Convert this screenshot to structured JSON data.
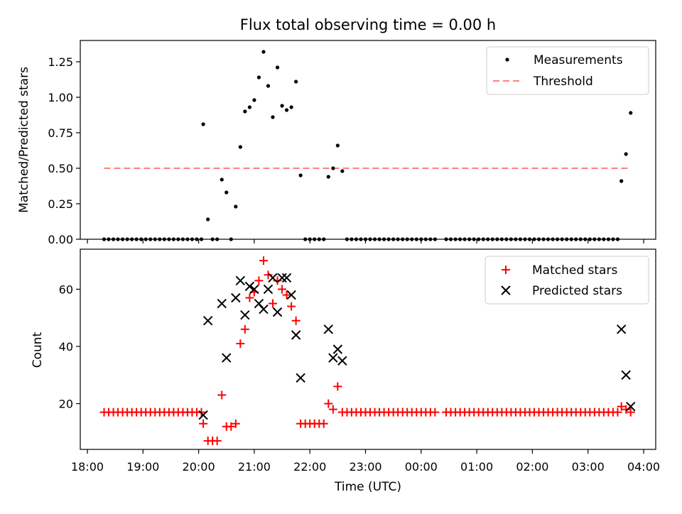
{
  "chart_data": [
    {
      "type": "scatter",
      "title": "Flux total observing time = 0.00 h",
      "xlabel": "",
      "ylabel": "Matched/Predicted stars",
      "ylim": [
        0,
        1.4
      ],
      "yticks": [
        "0.00",
        "0.25",
        "0.50",
        "0.75",
        "1.00",
        "1.25"
      ],
      "legend_position": "top-right",
      "series": [
        {
          "name": "Measurements",
          "color": "#000000",
          "marker": "dot",
          "points": [
            [
              -5.7,
              0
            ],
            [
              -5.617,
              0
            ],
            [
              -5.533,
              0
            ],
            [
              -5.45,
              0
            ],
            [
              -5.367,
              0
            ],
            [
              -5.283,
              0
            ],
            [
              -5.2,
              0
            ],
            [
              -5.117,
              0
            ],
            [
              -5.033,
              0
            ],
            [
              -4.95,
              0
            ],
            [
              -4.867,
              0
            ],
            [
              -4.783,
              0
            ],
            [
              -4.7,
              0
            ],
            [
              -4.617,
              0
            ],
            [
              -4.533,
              0
            ],
            [
              -4.45,
              0
            ],
            [
              -4.367,
              0
            ],
            [
              -4.283,
              0
            ],
            [
              -4.2,
              0
            ],
            [
              -4.117,
              0
            ],
            [
              -4.033,
              0
            ],
            [
              -3.95,
              0
            ],
            [
              -3.917,
              0.81
            ],
            [
              -3.833,
              0.14
            ],
            [
              -3.75,
              0
            ],
            [
              -3.667,
              0
            ],
            [
              -3.583,
              0.42
            ],
            [
              -3.5,
              0.33
            ],
            [
              -3.417,
              0
            ],
            [
              -3.333,
              0.23
            ],
            [
              -3.25,
              0.65
            ],
            [
              -3.167,
              0.9
            ],
            [
              -3.083,
              0.93
            ],
            [
              -3.0,
              0.98
            ],
            [
              -2.917,
              1.14
            ],
            [
              -2.833,
              1.32
            ],
            [
              -2.75,
              1.08
            ],
            [
              -2.667,
              0.86
            ],
            [
              -2.583,
              1.21
            ],
            [
              -2.5,
              0.94
            ],
            [
              -2.417,
              0.91
            ],
            [
              -2.333,
              0.93
            ],
            [
              -2.25,
              1.11
            ],
            [
              -2.167,
              0.45
            ],
            [
              -2.083,
              0
            ],
            [
              -2.0,
              0
            ],
            [
              -1.917,
              0
            ],
            [
              -1.833,
              0
            ],
            [
              -1.75,
              0
            ],
            [
              -1.667,
              0.44
            ],
            [
              -1.583,
              0.5
            ],
            [
              -1.5,
              0.66
            ],
            [
              -1.417,
              0.48
            ],
            [
              -1.333,
              0
            ],
            [
              -1.25,
              0
            ],
            [
              -1.167,
              0
            ],
            [
              -1.083,
              0
            ],
            [
              -1.0,
              0
            ],
            [
              -0.917,
              0
            ],
            [
              -0.833,
              0
            ],
            [
              -0.75,
              0
            ],
            [
              -0.667,
              0
            ],
            [
              -0.583,
              0
            ],
            [
              -0.5,
              0
            ],
            [
              -0.417,
              0
            ],
            [
              -0.333,
              0
            ],
            [
              -0.25,
              0
            ],
            [
              -0.167,
              0
            ],
            [
              -0.083,
              0
            ],
            [
              0.0,
              0
            ],
            [
              0.083,
              0
            ],
            [
              0.167,
              0
            ],
            [
              0.25,
              0
            ],
            [
              0.45,
              0
            ],
            [
              0.533,
              0
            ],
            [
              0.617,
              0
            ],
            [
              0.7,
              0
            ],
            [
              0.783,
              0
            ],
            [
              0.867,
              0
            ],
            [
              0.95,
              0
            ],
            [
              1.033,
              0
            ],
            [
              1.117,
              0
            ],
            [
              1.2,
              0
            ],
            [
              1.283,
              0
            ],
            [
              1.367,
              0
            ],
            [
              1.45,
              0
            ],
            [
              1.533,
              0
            ],
            [
              1.617,
              0
            ],
            [
              1.7,
              0
            ],
            [
              1.783,
              0
            ],
            [
              1.867,
              0
            ],
            [
              1.95,
              0
            ],
            [
              2.033,
              0
            ],
            [
              2.117,
              0
            ],
            [
              2.2,
              0
            ],
            [
              2.283,
              0
            ],
            [
              2.367,
              0
            ],
            [
              2.45,
              0
            ],
            [
              2.533,
              0
            ],
            [
              2.617,
              0
            ],
            [
              2.7,
              0
            ],
            [
              2.783,
              0
            ],
            [
              2.867,
              0
            ],
            [
              2.95,
              0
            ],
            [
              3.033,
              0
            ],
            [
              3.117,
              0
            ],
            [
              3.2,
              0
            ],
            [
              3.283,
              0
            ],
            [
              3.367,
              0
            ],
            [
              3.45,
              0
            ],
            [
              3.533,
              0
            ],
            [
              3.6,
              0.41
            ],
            [
              3.683,
              0.6
            ],
            [
              3.767,
              0.89
            ]
          ]
        },
        {
          "name": "Threshold",
          "color": "#ff7f7f",
          "marker": "dashed-line",
          "points": [
            [
              -5.7,
              0.5
            ],
            [
              3.767,
              0.5
            ]
          ]
        }
      ]
    },
    {
      "type": "scatter",
      "title": "",
      "xlabel": "Time (UTC)",
      "ylabel": "Count",
      "ylim": [
        4,
        74
      ],
      "yticks": [
        "20",
        "40",
        "60"
      ],
      "xlim": [
        "18:00",
        "04:00"
      ],
      "xticks": [
        "18:00",
        "19:00",
        "20:00",
        "21:00",
        "22:00",
        "23:00",
        "00:00",
        "01:00",
        "02:00",
        "03:00",
        "04:00"
      ],
      "legend_position": "top-right",
      "series": [
        {
          "name": "Matched stars",
          "color": "#ff0000",
          "marker": "plus",
          "points": [
            [
              -5.7,
              17
            ],
            [
              -5.617,
              17
            ],
            [
              -5.533,
              17
            ],
            [
              -5.45,
              17
            ],
            [
              -5.367,
              17
            ],
            [
              -5.283,
              17
            ],
            [
              -5.2,
              17
            ],
            [
              -5.117,
              17
            ],
            [
              -5.033,
              17
            ],
            [
              -4.95,
              17
            ],
            [
              -4.867,
              17
            ],
            [
              -4.783,
              17
            ],
            [
              -4.7,
              17
            ],
            [
              -4.617,
              17
            ],
            [
              -4.533,
              17
            ],
            [
              -4.45,
              17
            ],
            [
              -4.367,
              17
            ],
            [
              -4.283,
              17
            ],
            [
              -4.2,
              17
            ],
            [
              -4.117,
              17
            ],
            [
              -4.033,
              17
            ],
            [
              -3.95,
              17
            ],
            [
              -3.917,
              13
            ],
            [
              -3.833,
              7
            ],
            [
              -3.75,
              7
            ],
            [
              -3.667,
              7
            ],
            [
              -3.583,
              23
            ],
            [
              -3.5,
              12
            ],
            [
              -3.417,
              12
            ],
            [
              -3.333,
              13
            ],
            [
              -3.25,
              41
            ],
            [
              -3.167,
              46
            ],
            [
              -3.083,
              57
            ],
            [
              -3.0,
              59
            ],
            [
              -2.917,
              63
            ],
            [
              -2.833,
              70
            ],
            [
              -2.75,
              65
            ],
            [
              -2.667,
              55
            ],
            [
              -2.583,
              63
            ],
            [
              -2.5,
              60
            ],
            [
              -2.417,
              58
            ],
            [
              -2.333,
              54
            ],
            [
              -2.25,
              49
            ],
            [
              -2.167,
              13
            ],
            [
              -2.083,
              13
            ],
            [
              -2.0,
              13
            ],
            [
              -1.917,
              13
            ],
            [
              -1.833,
              13
            ],
            [
              -1.75,
              13
            ],
            [
              -1.667,
              20
            ],
            [
              -1.583,
              18
            ],
            [
              -1.5,
              26
            ],
            [
              -1.417,
              17
            ],
            [
              -1.333,
              17
            ],
            [
              -1.25,
              17
            ],
            [
              -1.167,
              17
            ],
            [
              -1.083,
              17
            ],
            [
              -1.0,
              17
            ],
            [
              -0.917,
              17
            ],
            [
              -0.833,
              17
            ],
            [
              -0.75,
              17
            ],
            [
              -0.667,
              17
            ],
            [
              -0.583,
              17
            ],
            [
              -0.5,
              17
            ],
            [
              -0.417,
              17
            ],
            [
              -0.333,
              17
            ],
            [
              -0.25,
              17
            ],
            [
              -0.167,
              17
            ],
            [
              -0.083,
              17
            ],
            [
              0.0,
              17
            ],
            [
              0.083,
              17
            ],
            [
              0.167,
              17
            ],
            [
              0.25,
              17
            ],
            [
              0.45,
              17
            ],
            [
              0.533,
              17
            ],
            [
              0.617,
              17
            ],
            [
              0.7,
              17
            ],
            [
              0.783,
              17
            ],
            [
              0.867,
              17
            ],
            [
              0.95,
              17
            ],
            [
              1.033,
              17
            ],
            [
              1.117,
              17
            ],
            [
              1.2,
              17
            ],
            [
              1.283,
              17
            ],
            [
              1.367,
              17
            ],
            [
              1.45,
              17
            ],
            [
              1.533,
              17
            ],
            [
              1.617,
              17
            ],
            [
              1.7,
              17
            ],
            [
              1.783,
              17
            ],
            [
              1.867,
              17
            ],
            [
              1.95,
              17
            ],
            [
              2.033,
              17
            ],
            [
              2.117,
              17
            ],
            [
              2.2,
              17
            ],
            [
              2.283,
              17
            ],
            [
              2.367,
              17
            ],
            [
              2.45,
              17
            ],
            [
              2.533,
              17
            ],
            [
              2.617,
              17
            ],
            [
              2.7,
              17
            ],
            [
              2.783,
              17
            ],
            [
              2.867,
              17
            ],
            [
              2.95,
              17
            ],
            [
              3.033,
              17
            ],
            [
              3.117,
              17
            ],
            [
              3.2,
              17
            ],
            [
              3.283,
              17
            ],
            [
              3.367,
              17
            ],
            [
              3.45,
              17
            ],
            [
              3.533,
              17
            ],
            [
              3.6,
              19
            ],
            [
              3.683,
              18
            ],
            [
              3.767,
              17
            ]
          ]
        },
        {
          "name": "Predicted stars",
          "color": "#000000",
          "marker": "x",
          "points": [
            [
              -3.917,
              16
            ],
            [
              -3.833,
              49
            ],
            [
              -3.583,
              55
            ],
            [
              -3.5,
              36
            ],
            [
              -3.333,
              57
            ],
            [
              -3.25,
              63
            ],
            [
              -3.167,
              51
            ],
            [
              -3.083,
              61
            ],
            [
              -3.0,
              60
            ],
            [
              -2.917,
              55
            ],
            [
              -2.833,
              53
            ],
            [
              -2.75,
              60
            ],
            [
              -2.667,
              64
            ],
            [
              -2.583,
              52
            ],
            [
              -2.5,
              64
            ],
            [
              -2.417,
              64
            ],
            [
              -2.333,
              58
            ],
            [
              -2.25,
              44
            ],
            [
              -2.167,
              29
            ],
            [
              -1.667,
              46
            ],
            [
              -1.583,
              36
            ],
            [
              -1.5,
              39
            ],
            [
              -1.417,
              35
            ],
            [
              3.6,
              46
            ],
            [
              3.683,
              30
            ],
            [
              3.767,
              19
            ]
          ]
        }
      ]
    }
  ]
}
